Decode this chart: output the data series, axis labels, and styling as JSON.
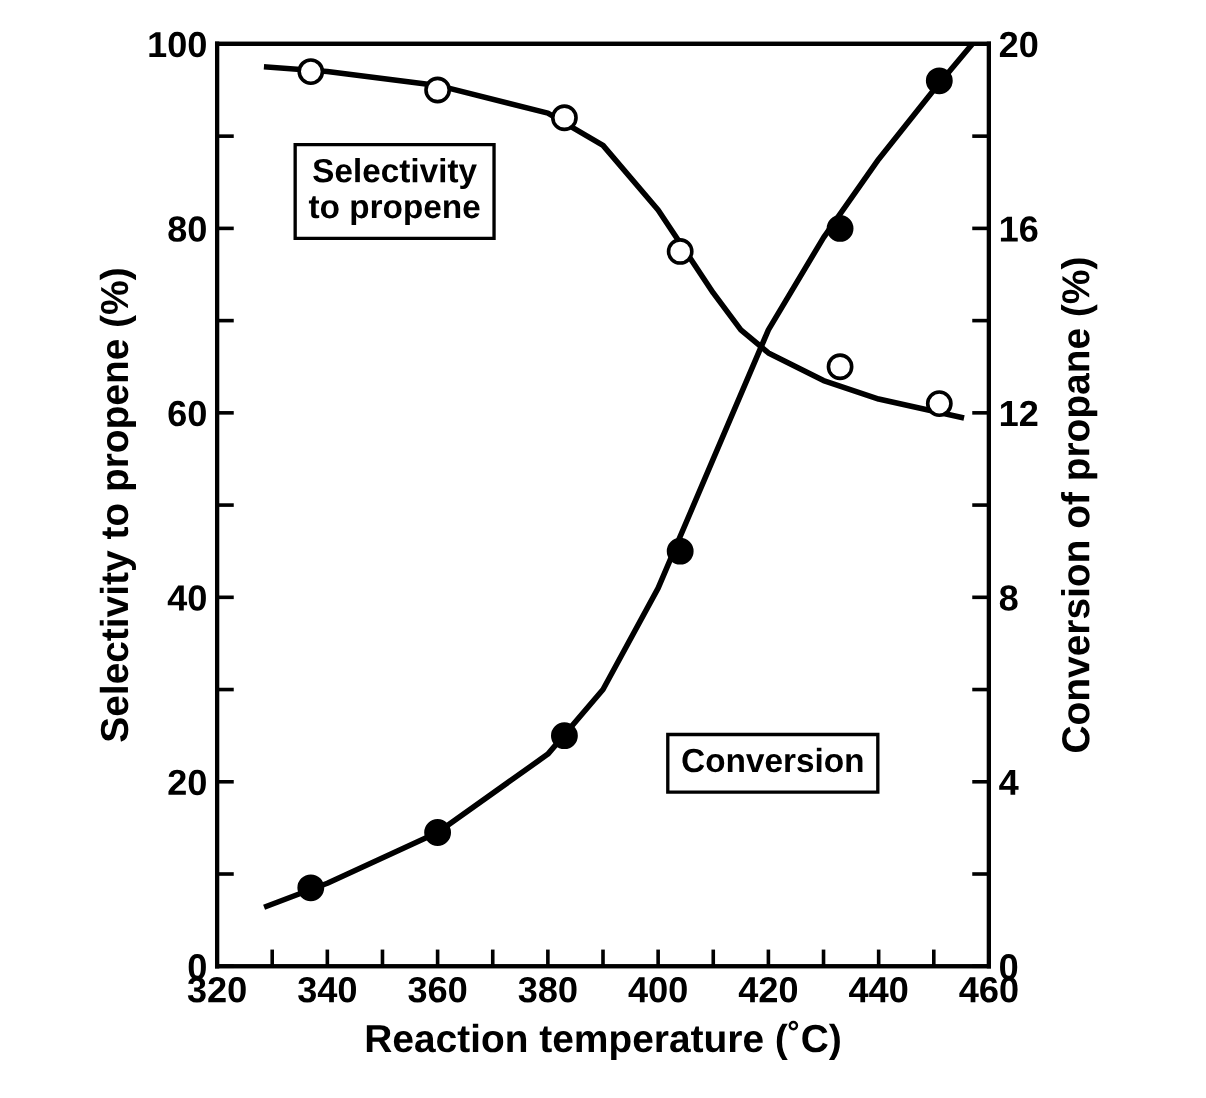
{
  "chart_data": {
    "type": "scatter",
    "xlabel": "Reaction temperature (˚C)",
    "ylabel": "Selectivity to propene (%)",
    "y2label": "Conversion of propane (%)",
    "xlim": [
      320,
      460
    ],
    "xticks": [
      320,
      {
        "value": 330,
        "label": null
      },
      340,
      {
        "value": 350,
        "label": null
      },
      360,
      {
        "value": 370,
        "label": null
      },
      380,
      {
        "value": 390,
        "label": null
      },
      400,
      {
        "value": 410,
        "label": null
      },
      420,
      {
        "value": 430,
        "label": null
      },
      440,
      {
        "value": 450,
        "label": null
      },
      460
    ],
    "ylim": [
      0,
      100
    ],
    "yticks": [
      0,
      {
        "value": 10,
        "label": null
      },
      20,
      {
        "value": 30,
        "label": null
      },
      40,
      {
        "value": 50,
        "label": null
      },
      60,
      {
        "value": 70,
        "label": null
      },
      80,
      {
        "value": 90,
        "label": null
      },
      100
    ],
    "y2lim": [
      0,
      20
    ],
    "y2ticks": [
      0,
      {
        "value": 2,
        "label": null
      },
      4,
      {
        "value": 6,
        "label": null
      },
      8,
      {
        "value": 10,
        "label": null
      },
      12,
      {
        "value": 14,
        "label": null
      },
      16,
      {
        "value": 18,
        "label": null
      },
      20
    ],
    "grid": false,
    "marker": "circle",
    "series": [
      {
        "type": "line",
        "color": "#000000",
        "marker": "none",
        "x": [
          329,
          340,
          360,
          380,
          390,
          400,
          410,
          415,
          420,
          430,
          440,
          455
        ],
        "values": [
          97.5,
          97,
          95.5,
          92.5,
          89,
          82,
          73,
          69,
          66.5,
          63.5,
          61.5,
          59.5
        ]
      },
      {
        "type": "line",
        "color": "#000000",
        "marker": "none",
        "axis": "y2",
        "x": [
          329,
          340,
          360,
          380,
          390,
          400,
          410,
          420,
          430,
          440,
          450,
          457
        ],
        "values": [
          1.3,
          1.8,
          2.9,
          4.6,
          6.0,
          8.2,
          11.0,
          13.8,
          15.8,
          17.5,
          19.0,
          20
        ]
      },
      {
        "color": "#ffffff",
        "x": [
          337,
          360,
          383,
          404,
          433,
          451
        ],
        "values": [
          97,
          95,
          92,
          77.5,
          65,
          61
        ]
      },
      {
        "color": "#000000",
        "axis": "y2",
        "x": [
          337,
          360,
          383,
          404,
          433,
          451
        ],
        "values": [
          1.7,
          2.9,
          5.0,
          9.0,
          16.0,
          19.2
        ]
      }
    ],
    "annotations": [
      "Selectivity\nto propene",
      "Conversion"
    ]
  }
}
